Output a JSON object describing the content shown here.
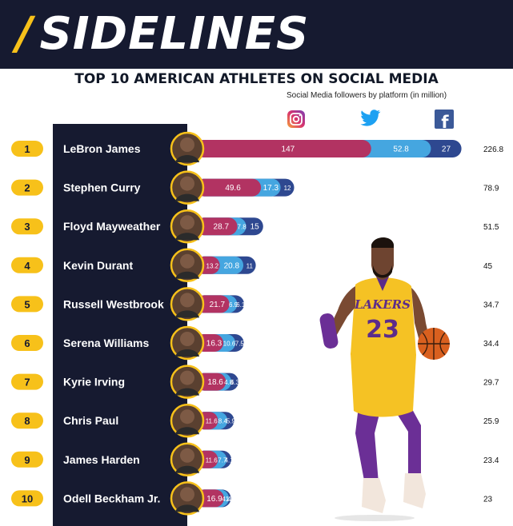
{
  "header": {
    "brand": "SIDELINES",
    "brand_mark": "/"
  },
  "title": "TOP 10 AMERICAN ATHLETES ON SOCIAL MEDIA",
  "subtitle": "Social Media followers by platform (in million)",
  "platform_icons": [
    "instagram-icon",
    "twitter-icon",
    "facebook-icon"
  ],
  "platform_icon_text": {
    "facebook": "f"
  },
  "colors": {
    "instagram": "#b23362",
    "twitter": "#45a6e0",
    "facebook": "#2e4890",
    "panel": "#161a30",
    "rank_badge": "#f7c11a",
    "accent": "#f7c11a"
  },
  "chart_data": {
    "type": "bar",
    "orientation": "horizontal",
    "stacked": true,
    "categories": [
      "LeBron James",
      "Stephen Curry",
      "Floyd Mayweather",
      "Kevin Durant",
      "Russell Westbrook",
      "Serena Williams",
      "Kyrie Irving",
      "Chris Paul",
      "James Harden",
      "Odell Beckham Jr."
    ],
    "ranks": [
      "1",
      "2",
      "3",
      "4",
      "5",
      "6",
      "7",
      "8",
      "9",
      "10"
    ],
    "series": [
      {
        "icon": "instagram-icon",
        "values": [
          147,
          49.6,
          28.7,
          13.2,
          21.7,
          16.3,
          18.6,
          11.6,
          11.6,
          16.9
        ]
      },
      {
        "icon": "twitter-icon",
        "values": [
          52.8,
          17.3,
          7.8,
          20.8,
          6.9,
          10.6,
          4.8,
          8.4,
          7.7,
          4.4
        ]
      },
      {
        "icon": "facebook-icon",
        "values": [
          27,
          12,
          15,
          11,
          6.1,
          7.5,
          6.3,
          5.9,
          4.1,
          1.7
        ]
      }
    ],
    "value_labels": [
      [
        "147",
        "52.8",
        "27"
      ],
      [
        "49.6",
        "17.3",
        "12"
      ],
      [
        "28.7",
        "7.8",
        "15"
      ],
      [
        "13.2",
        "20.8",
        "11"
      ],
      [
        "21.7",
        "6.9",
        "6.1"
      ],
      [
        "16.3",
        "10.6",
        "7.5"
      ],
      [
        "18.6",
        "4.8",
        "6.3"
      ],
      [
        "11.6",
        "8.4",
        "5.9"
      ],
      [
        "11.6",
        "7.7",
        "4.1"
      ],
      [
        "16.9",
        "4.4",
        "1.7"
      ]
    ],
    "totals": [
      "226.8",
      "78.9",
      "51.5",
      "45",
      "34.7",
      "34.4",
      "29.7",
      "25.9",
      "23.4",
      "23"
    ],
    "xlabel": "",
    "ylabel": "",
    "grid": false,
    "legend": "top-right"
  },
  "illustration": {
    "jersey_team": "LAKERS",
    "jersey_number": "23"
  }
}
